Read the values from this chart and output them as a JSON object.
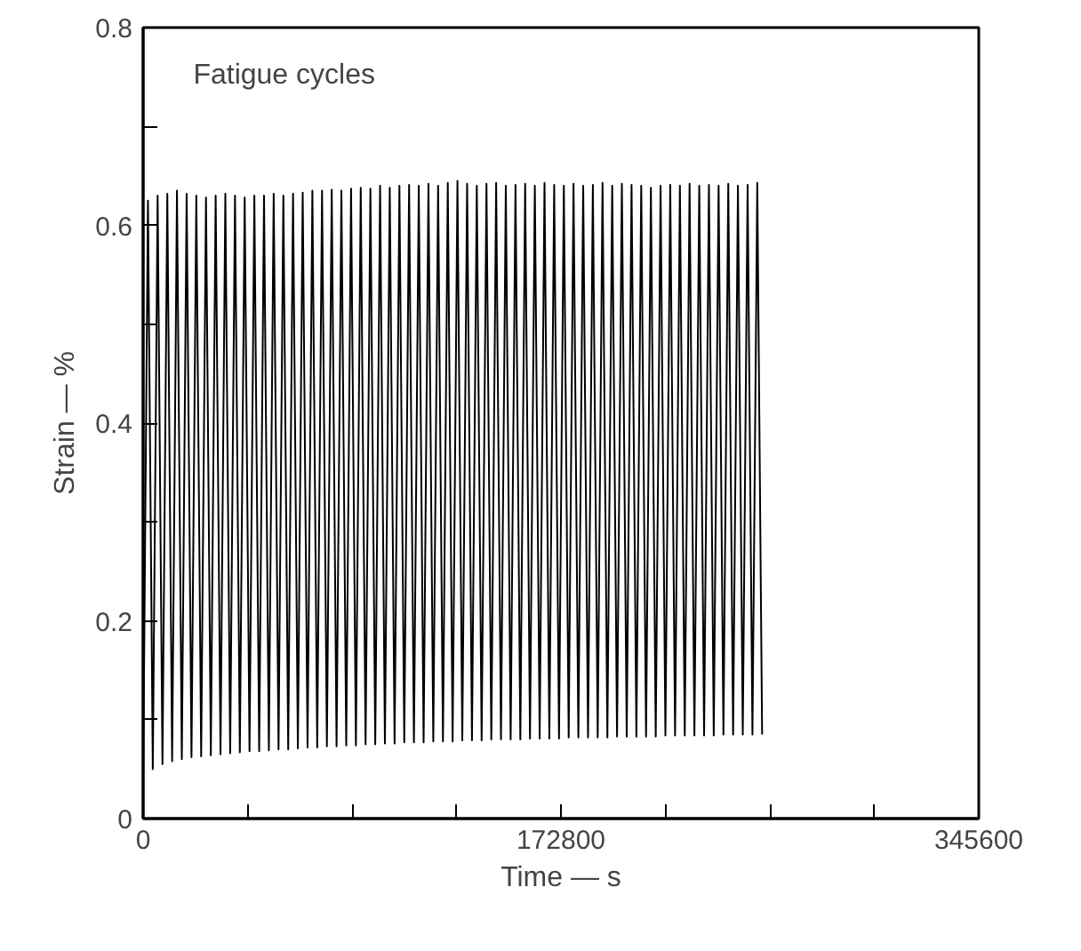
{
  "chart_data": {
    "type": "line",
    "xlabel": "Time — s",
    "ylabel": "Strain — %",
    "annotations": [
      "Fatigue cycles"
    ],
    "x": [
      0,
      2000,
      4000,
      6000,
      8000,
      10000,
      12000,
      14000,
      16000,
      18000,
      20000,
      22000,
      24000,
      26000,
      28000,
      30000,
      32000,
      34000,
      36000,
      38000,
      40000,
      42000,
      44000,
      46000,
      48000,
      50000,
      52000,
      54000,
      56000,
      58000,
      60000,
      62000,
      64000,
      66000,
      68000,
      70000,
      72000,
      74000,
      76000,
      78000,
      80000,
      82000,
      84000,
      86000,
      88000,
      90000,
      92000,
      94000,
      96000,
      98000,
      100000,
      102000,
      104000,
      106000,
      108000,
      110000,
      112000,
      114000,
      116000,
      118000,
      120000,
      122000,
      124000,
      126000,
      128000,
      130000,
      132000,
      134000,
      136000,
      138000,
      140000,
      142000,
      144000,
      146000,
      148000,
      150000,
      152000,
      154000,
      156000,
      158000,
      160000,
      162000,
      164000,
      166000,
      168000,
      170000,
      172000,
      174000,
      176000,
      178000,
      180000,
      182000,
      184000,
      186000,
      188000,
      190000,
      192000,
      194000,
      196000,
      198000,
      200000,
      202000,
      204000,
      206000,
      208000,
      210000,
      212000,
      214000,
      216000,
      218000,
      220000,
      222000,
      224000,
      226000,
      228000,
      230000,
      232000,
      234000,
      236000,
      238000,
      240000,
      242000,
      244000,
      246000,
      248000,
      250000,
      252000,
      254000,
      256000
    ],
    "series": [
      {
        "color": "#000000",
        "values": [
          0.04,
          0.625,
          0.05,
          0.63,
          0.055,
          0.632,
          0.058,
          0.635,
          0.06,
          0.632,
          0.062,
          0.63,
          0.063,
          0.628,
          0.064,
          0.63,
          0.065,
          0.632,
          0.066,
          0.63,
          0.067,
          0.628,
          0.068,
          0.63,
          0.068,
          0.63,
          0.069,
          0.632,
          0.07,
          0.63,
          0.07,
          0.632,
          0.071,
          0.633,
          0.072,
          0.635,
          0.072,
          0.635,
          0.073,
          0.636,
          0.073,
          0.635,
          0.074,
          0.637,
          0.074,
          0.638,
          0.075,
          0.637,
          0.075,
          0.64,
          0.076,
          0.638,
          0.076,
          0.64,
          0.077,
          0.641,
          0.077,
          0.64,
          0.077,
          0.642,
          0.078,
          0.64,
          0.078,
          0.643,
          0.078,
          0.645,
          0.079,
          0.642,
          0.079,
          0.64,
          0.079,
          0.642,
          0.08,
          0.643,
          0.08,
          0.64,
          0.08,
          0.641,
          0.08,
          0.642,
          0.081,
          0.64,
          0.081,
          0.643,
          0.081,
          0.641,
          0.081,
          0.64,
          0.082,
          0.642,
          0.082,
          0.64,
          0.082,
          0.641,
          0.082,
          0.643,
          0.082,
          0.64,
          0.083,
          0.642,
          0.083,
          0.641,
          0.083,
          0.64,
          0.083,
          0.638,
          0.083,
          0.64,
          0.084,
          0.641,
          0.084,
          0.64,
          0.084,
          0.642,
          0.084,
          0.64,
          0.084,
          0.641,
          0.084,
          0.64,
          0.085,
          0.642,
          0.085,
          0.64,
          0.085,
          0.641,
          0.085,
          0.643,
          0.085
        ]
      }
    ],
    "xlim": [
      0,
      345600
    ],
    "xticks": [
      0,
      {
        "value": 43200,
        "label": null
      },
      {
        "value": 86400,
        "label": null
      },
      {
        "value": 129600,
        "label": null
      },
      172800,
      {
        "value": 216000,
        "label": null
      },
      {
        "value": 259200,
        "label": null
      },
      {
        "value": 302400,
        "label": null
      },
      345600
    ],
    "ylim": [
      0,
      0.8
    ],
    "yticks": [
      0,
      {
        "value": 0.1,
        "label": null
      },
      0.2,
      {
        "value": 0.3,
        "label": null
      },
      0.4,
      {
        "value": 0.5,
        "label": null
      },
      0.6,
      {
        "value": 0.7,
        "label": null
      },
      0.8
    ],
    "grid": false,
    "marker": "none",
    "line_style": "solid"
  }
}
